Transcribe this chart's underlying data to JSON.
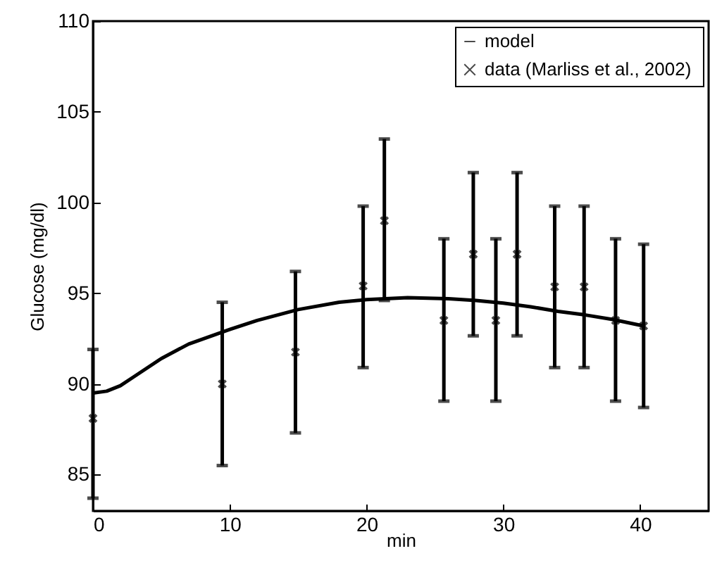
{
  "chart_data": {
    "type": "scatter",
    "xlabel": "min",
    "ylabel": "Glucose (mg/dl)",
    "xlim": [
      0,
      45
    ],
    "ylim": [
      83,
      110
    ],
    "xticks": [
      0,
      10,
      20,
      30,
      40
    ],
    "yticks": [
      85,
      90,
      95,
      100,
      105,
      110
    ],
    "grid": false,
    "legend": "top right",
    "series": [
      {
        "name": "model",
        "type": "line",
        "marker": "none",
        "color": "#000000",
        "x": [
          0,
          1,
          2,
          3,
          5,
          7,
          10,
          12,
          15,
          18,
          20,
          23,
          26,
          28,
          30,
          32,
          34,
          36,
          38,
          40.2
        ],
        "values": [
          89.5,
          89.6,
          89.9,
          90.4,
          91.4,
          92.2,
          93.0,
          93.5,
          94.1,
          94.5,
          94.65,
          94.75,
          94.7,
          94.6,
          94.45,
          94.25,
          94.0,
          93.8,
          93.55,
          93.2
        ]
      },
      {
        "name": "data (Marliss  et al., 2002)",
        "type": "scatter",
        "marker": "cross",
        "color": "#000000",
        "x": [
          0,
          9.45,
          14.8,
          19.75,
          21.3,
          25.65,
          27.8,
          29.45,
          31.0,
          33.75,
          35.9,
          38.2,
          40.25
        ],
        "values": [
          88.1,
          90.0,
          91.75,
          95.4,
          99.0,
          93.5,
          97.15,
          93.5,
          97.15,
          95.35,
          95.35,
          93.5,
          93.2
        ],
        "errors": [
          [
            83.7,
            91.9
          ],
          [
            85.5,
            94.5
          ],
          [
            87.3,
            96.2
          ],
          [
            90.9,
            99.8
          ],
          [
            94.6,
            103.5
          ],
          [
            89.05,
            98.0
          ],
          [
            92.65,
            101.65
          ],
          [
            89.05,
            98.0
          ],
          [
            92.65,
            101.65
          ],
          [
            90.9,
            99.8
          ],
          [
            90.9,
            99.8
          ],
          [
            89.05,
            98.0
          ],
          [
            88.7,
            97.7
          ]
        ]
      }
    ]
  }
}
